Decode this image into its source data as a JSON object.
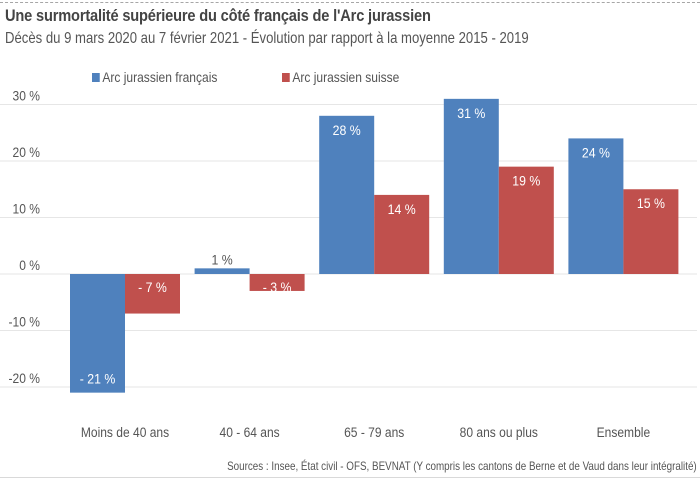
{
  "chart_data": {
    "type": "bar",
    "title": "Une surmortalité supérieure du côté français de l'Arc jurassien",
    "subtitle": "Décès du 9 mars 2020 au 7 février 2021 - Évolution par rapport à la moyenne 2015 - 2019",
    "categories": [
      "Moins de 40 ans",
      "40 - 64 ans",
      "65 - 79 ans",
      "80 ans ou plus",
      "Ensemble"
    ],
    "series": [
      {
        "name": "Arc jurassien français",
        "color": "#4f81bd",
        "values": [
          -21,
          1,
          28,
          31,
          24
        ],
        "labels": [
          "- 21 %",
          "1 %",
          "28 %",
          "31 %",
          "24 %"
        ]
      },
      {
        "name": "Arc jurassien suisse",
        "color": "#c0504d",
        "values": [
          -7,
          -3,
          14,
          19,
          15
        ],
        "labels": [
          "- 7 %",
          "- 3 %",
          "14 %",
          "19 %",
          "15 %"
        ]
      }
    ],
    "ylim": [
      -20,
      30
    ],
    "yticks": [
      30,
      20,
      10,
      0,
      -10,
      -20
    ],
    "ytick_labels": [
      "30 %",
      "20 %",
      "10 %",
      "0 %",
      "-10 %",
      "-20 %"
    ],
    "xlabel": "",
    "ylabel": "",
    "grid": true,
    "legend_position": "top-left",
    "source": "Sources : Insee, État civil - OFS, BEVNAT (Y compris les cantons de Berne et de Vaud dans leur intégralité)"
  }
}
